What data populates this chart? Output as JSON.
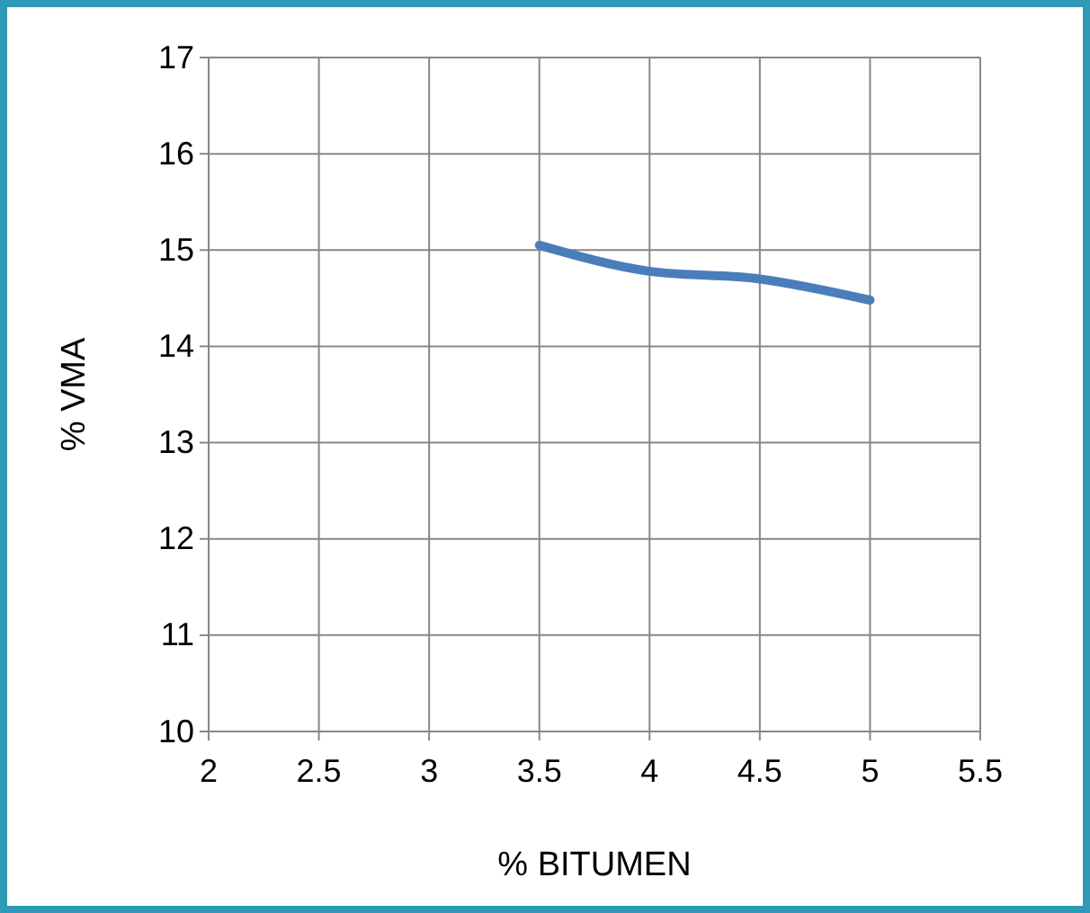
{
  "chart_data": {
    "type": "line",
    "xlabel": "% BITUMEN",
    "ylabel": "% VMA",
    "x": [
      3.5,
      4,
      4.5,
      5
    ],
    "series": [
      {
        "color": "#4a7ebb",
        "values": [
          15.05,
          14.78,
          14.7,
          14.48
        ]
      }
    ],
    "xlim": [
      2,
      5.5
    ],
    "xticks": [
      2,
      2.5,
      3,
      3.5,
      4,
      4.5,
      5,
      5.5
    ],
    "ylim": [
      10,
      17
    ],
    "yticks": [
      10,
      11,
      12,
      13,
      14,
      15,
      16,
      17
    ],
    "grid": true,
    "marker": "none",
    "line_style": "solid"
  }
}
